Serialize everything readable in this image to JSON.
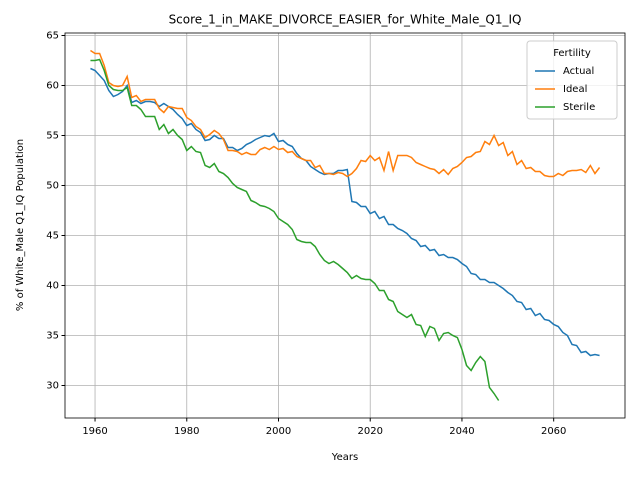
{
  "chart_data": {
    "type": "line",
    "title": "Score_1_in_MAKE_DIVORCE_EASIER_for_White_Male_Q1_IQ",
    "xlabel": "Years",
    "ylabel": "% of White_Male Q1_IQ Population",
    "legend_title": "Fertility",
    "legend_loc": "upper right",
    "grid": true,
    "xlim": [
      1953.45,
      2075.55
    ],
    "xticks": [
      1960,
      1980,
      2000,
      2020,
      2040,
      2060
    ],
    "ylim": [
      26.75,
      65.25
    ],
    "yticks": [
      30,
      35,
      40,
      45,
      50,
      55,
      60,
      65
    ],
    "x": [
      1959,
      1960,
      1961,
      1962,
      1963,
      1964,
      1965,
      1966,
      1967,
      1968,
      1969,
      1970,
      1971,
      1972,
      1973,
      1974,
      1975,
      1976,
      1977,
      1978,
      1979,
      1980,
      1981,
      1982,
      1983,
      1984,
      1985,
      1986,
      1987,
      1988,
      1989,
      1990,
      1991,
      1992,
      1993,
      1994,
      1995,
      1996,
      1997,
      1998,
      1999,
      2000,
      2001,
      2002,
      2003,
      2004,
      2005,
      2006,
      2007,
      2008,
      2009,
      2010,
      2011,
      2012,
      2013,
      2014,
      2015,
      2016,
      2017,
      2018,
      2019,
      2020,
      2021,
      2022,
      2023,
      2024,
      2025,
      2026,
      2027,
      2028,
      2029,
      2030,
      2031,
      2032,
      2033,
      2034,
      2035,
      2036,
      2037,
      2038,
      2039,
      2040,
      2041,
      2042,
      2043,
      2044,
      2045,
      2046,
      2047,
      2048,
      2049,
      2050,
      2051,
      2052,
      2053,
      2054,
      2055,
      2056,
      2057,
      2058,
      2059,
      2060,
      2061,
      2062,
      2063,
      2064,
      2065,
      2066,
      2067,
      2068,
      2069,
      2070
    ],
    "series": [
      {
        "name": "Actual",
        "color": "#1f77b4",
        "values": [
          61.7,
          61.5,
          61.0,
          60.5,
          59.5,
          58.9,
          59.1,
          59.4,
          60.0,
          58.3,
          58.5,
          58.2,
          58.4,
          58.4,
          58.3,
          57.9,
          58.2,
          57.9,
          57.6,
          57.1,
          56.7,
          56.0,
          56.2,
          55.6,
          55.3,
          54.5,
          54.6,
          55.0,
          54.7,
          54.7,
          53.8,
          53.8,
          53.5,
          53.7,
          54.1,
          54.3,
          54.6,
          54.8,
          55.0,
          54.9,
          55.2,
          54.4,
          54.5,
          54.1,
          53.9,
          53.2,
          52.7,
          52.5,
          51.9,
          51.6,
          51.3,
          51.1,
          51.2,
          51.2,
          51.5,
          51.5,
          51.6,
          48.4,
          48.3,
          47.9,
          47.9,
          47.2,
          47.4,
          46.7,
          46.9,
          46.1,
          46.1,
          45.7,
          45.5,
          45.2,
          44.7,
          44.5,
          43.9,
          44.0,
          43.5,
          43.6,
          43.0,
          43.1,
          42.8,
          42.8,
          42.6,
          42.2,
          41.9,
          41.2,
          41.1,
          40.6,
          40.6,
          40.3,
          40.3,
          40.0,
          39.7,
          39.3,
          39.0,
          38.4,
          38.3,
          37.6,
          37.7,
          37.0,
          37.2,
          36.6,
          36.5,
          36.1,
          35.9,
          35.3,
          35.0,
          34.1,
          34.0,
          33.3,
          33.4,
          33.0,
          33.1,
          33.0
        ]
      },
      {
        "name": "Ideal",
        "color": "#ff7f0e",
        "values": [
          63.5,
          63.2,
          63.2,
          62.0,
          60.3,
          60.0,
          59.9,
          60.0,
          60.9,
          58.8,
          59.0,
          58.4,
          58.6,
          58.6,
          58.6,
          57.7,
          57.3,
          57.9,
          57.8,
          57.7,
          57.7,
          56.8,
          56.5,
          55.9,
          55.6,
          54.8,
          55.1,
          55.5,
          55.2,
          54.6,
          53.5,
          53.5,
          53.4,
          53.1,
          53.3,
          53.1,
          53.1,
          53.6,
          53.8,
          53.6,
          53.9,
          53.6,
          53.7,
          53.3,
          53.4,
          52.9,
          52.7,
          52.5,
          52.5,
          51.8,
          52.0,
          51.2,
          51.2,
          51.1,
          51.3,
          51.2,
          50.9,
          51.2,
          51.7,
          52.5,
          52.4,
          53.0,
          52.5,
          52.8,
          51.5,
          53.4,
          51.5,
          53.0,
          53.0,
          53.0,
          52.8,
          52.3,
          52.1,
          51.9,
          51.7,
          51.6,
          51.2,
          51.6,
          51.1,
          51.7,
          51.9,
          52.3,
          52.8,
          52.9,
          53.3,
          53.4,
          54.4,
          54.1,
          55.0,
          54.0,
          54.3,
          53.0,
          53.4,
          52.1,
          52.5,
          51.7,
          51.8,
          51.4,
          51.4,
          51.0,
          50.9,
          50.9,
          51.2,
          51.0,
          51.4,
          51.5,
          51.5,
          51.6,
          51.3,
          52.0,
          51.2,
          51.8
        ]
      },
      {
        "name": "Sterile",
        "color": "#2ca02c",
        "values": [
          62.5,
          62.5,
          62.6,
          61.5,
          60.0,
          59.6,
          59.5,
          59.5,
          59.8,
          58.0,
          58.0,
          57.6,
          56.9,
          56.9,
          56.9,
          55.6,
          56.1,
          55.2,
          55.6,
          55.0,
          54.6,
          53.5,
          53.9,
          53.4,
          53.3,
          52.0,
          51.8,
          52.2,
          51.4,
          51.2,
          50.8,
          50.2,
          49.8,
          49.6,
          49.4,
          48.5,
          48.3,
          48.0,
          47.9,
          47.7,
          47.4,
          46.7,
          46.4,
          46.1,
          45.6,
          44.6,
          44.4,
          44.3,
          44.3,
          43.9,
          43.1,
          42.5,
          42.2,
          42.4,
          42.1,
          41.7,
          41.3,
          40.7,
          41.0,
          40.7,
          40.6,
          40.6,
          40.2,
          39.5,
          39.5,
          38.6,
          38.4,
          37.4,
          37.1,
          36.8,
          37.1,
          36.1,
          36.0,
          34.9,
          35.9,
          35.7,
          34.5,
          35.2,
          35.3,
          35.0,
          34.8,
          33.6,
          32.0,
          31.5,
          32.3,
          32.9,
          32.4,
          29.8,
          29.2,
          28.5,
          null,
          null,
          null,
          null,
          null,
          null,
          null,
          null,
          null,
          null,
          null,
          null,
          null,
          null,
          null,
          null,
          null,
          null,
          null,
          null,
          null,
          null
        ]
      }
    ]
  }
}
